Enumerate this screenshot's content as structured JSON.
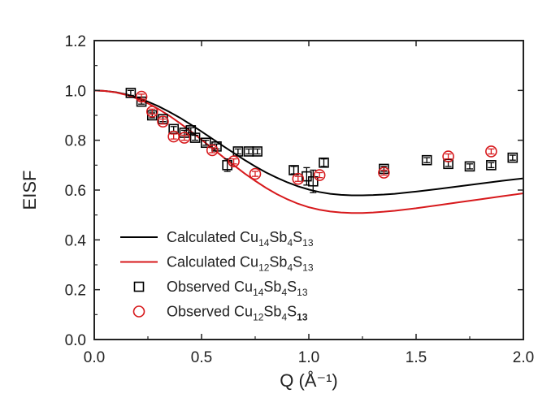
{
  "chart_data": {
    "type": "scatter",
    "xlabel": "Q (Å⁻¹)",
    "ylabel": "EISF",
    "xlim": [
      0.0,
      2.0
    ],
    "ylim": [
      0.0,
      1.2
    ],
    "xticks": [
      "0.0",
      "0.5",
      "1.0",
      "1.5",
      "2.0"
    ],
    "yticks": [
      "0.0",
      "0.2",
      "0.4",
      "0.6",
      "0.8",
      "1.0",
      "1.2"
    ],
    "legend_position": "bottom-left",
    "series": [
      {
        "name": "Calculated Cu14Sb4S13",
        "kind": "line",
        "color": "#000000",
        "x": [
          0.0,
          0.05,
          0.1,
          0.15,
          0.2,
          0.25,
          0.3,
          0.35,
          0.4,
          0.45,
          0.5,
          0.55,
          0.6,
          0.65,
          0.7,
          0.75,
          0.8,
          0.85,
          0.9,
          0.95,
          1.0,
          1.05,
          1.1,
          1.15,
          1.2,
          1.25,
          1.3,
          1.35,
          1.4,
          1.5,
          1.6,
          1.7,
          1.8,
          1.9,
          2.0
        ],
        "y": [
          1.0,
          0.998,
          0.993,
          0.984,
          0.971,
          0.955,
          0.936,
          0.914,
          0.89,
          0.863,
          0.835,
          0.806,
          0.777,
          0.749,
          0.721,
          0.695,
          0.671,
          0.65,
          0.631,
          0.615,
          0.602,
          0.592,
          0.585,
          0.581,
          0.579,
          0.579,
          0.58,
          0.582,
          0.585,
          0.594,
          0.604,
          0.615,
          0.626,
          0.637,
          0.647
        ]
      },
      {
        "name": "Calculated Cu12Sb4S13",
        "kind": "line",
        "color": "#d7191c",
        "x": [
          0.0,
          0.05,
          0.1,
          0.15,
          0.2,
          0.25,
          0.3,
          0.35,
          0.4,
          0.45,
          0.5,
          0.55,
          0.6,
          0.65,
          0.7,
          0.75,
          0.8,
          0.85,
          0.9,
          0.95,
          1.0,
          1.05,
          1.1,
          1.15,
          1.2,
          1.25,
          1.3,
          1.35,
          1.4,
          1.5,
          1.6,
          1.7,
          1.8,
          1.9,
          2.0
        ],
        "y": [
          1.0,
          0.998,
          0.992,
          0.982,
          0.967,
          0.948,
          0.925,
          0.898,
          0.868,
          0.836,
          0.802,
          0.768,
          0.733,
          0.7,
          0.667,
          0.637,
          0.609,
          0.584,
          0.563,
          0.545,
          0.531,
          0.521,
          0.514,
          0.51,
          0.508,
          0.508,
          0.51,
          0.513,
          0.517,
          0.527,
          0.539,
          0.551,
          0.563,
          0.575,
          0.587
        ]
      },
      {
        "name": "Observed Cu14Sb4S13",
        "kind": "scatter",
        "marker": "square",
        "color": "#000000",
        "x": [
          0.17,
          0.22,
          0.27,
          0.32,
          0.37,
          0.42,
          0.45,
          0.47,
          0.52,
          0.57,
          0.62,
          0.67,
          0.72,
          0.76,
          0.93,
          0.99,
          1.02,
          1.07,
          1.35,
          1.55,
          1.65,
          1.75,
          1.85,
          1.95
        ],
        "y": [
          0.99,
          0.955,
          0.9,
          0.885,
          0.845,
          0.83,
          0.84,
          0.81,
          0.79,
          0.775,
          0.7,
          0.755,
          0.755,
          0.755,
          0.68,
          0.655,
          0.635,
          0.71,
          0.685,
          0.72,
          0.705,
          0.695,
          0.7,
          0.73
        ],
        "yerr": [
          0.01,
          0.01,
          0.01,
          0.01,
          0.01,
          0.01,
          0.01,
          0.01,
          0.01,
          0.01,
          0.025,
          0.01,
          0.01,
          0.01,
          0.015,
          0.035,
          0.045,
          0.015,
          0.01,
          0.01,
          0.01,
          0.01,
          0.01,
          0.01
        ]
      },
      {
        "name": "Observed Cu12Sb4S13",
        "kind": "scatter",
        "marker": "circle",
        "color": "#d7191c",
        "x": [
          0.22,
          0.27,
          0.32,
          0.37,
          0.42,
          0.55,
          0.65,
          0.75,
          0.95,
          1.05,
          1.35,
          1.65,
          1.85
        ],
        "y": [
          0.975,
          0.915,
          0.875,
          0.815,
          0.81,
          0.76,
          0.715,
          0.665,
          0.645,
          0.66,
          0.67,
          0.735,
          0.755
        ],
        "yerr": [
          0.01,
          0.01,
          0.01,
          0.01,
          0.01,
          0.01,
          0.01,
          0.01,
          0.01,
          0.01,
          0.01,
          0.01,
          0.01
        ]
      }
    ],
    "legend": [
      {
        "kind": "line",
        "color": "#000000",
        "prefix": "Calculated Cu",
        "s1": "14",
        "mid1": "Sb",
        "s2": "4",
        "mid2": "S",
        "s3": "13"
      },
      {
        "kind": "line",
        "color": "#d7191c",
        "prefix": "Calculated Cu",
        "s1": "12",
        "mid1": "Sb",
        "s2": "4",
        "mid2": "S",
        "s3": "13"
      },
      {
        "kind": "square",
        "color": "#000000",
        "prefix": "Observed Cu",
        "s1": "14",
        "mid1": "Sb",
        "s2": "4",
        "mid2": "S",
        "s3": "13"
      },
      {
        "kind": "circle",
        "color": "#d7191c",
        "prefix": "Observed Cu",
        "s1": "12",
        "mid1": "Sb",
        "s2": "4",
        "mid2": "S",
        "s3": "13"
      }
    ]
  }
}
